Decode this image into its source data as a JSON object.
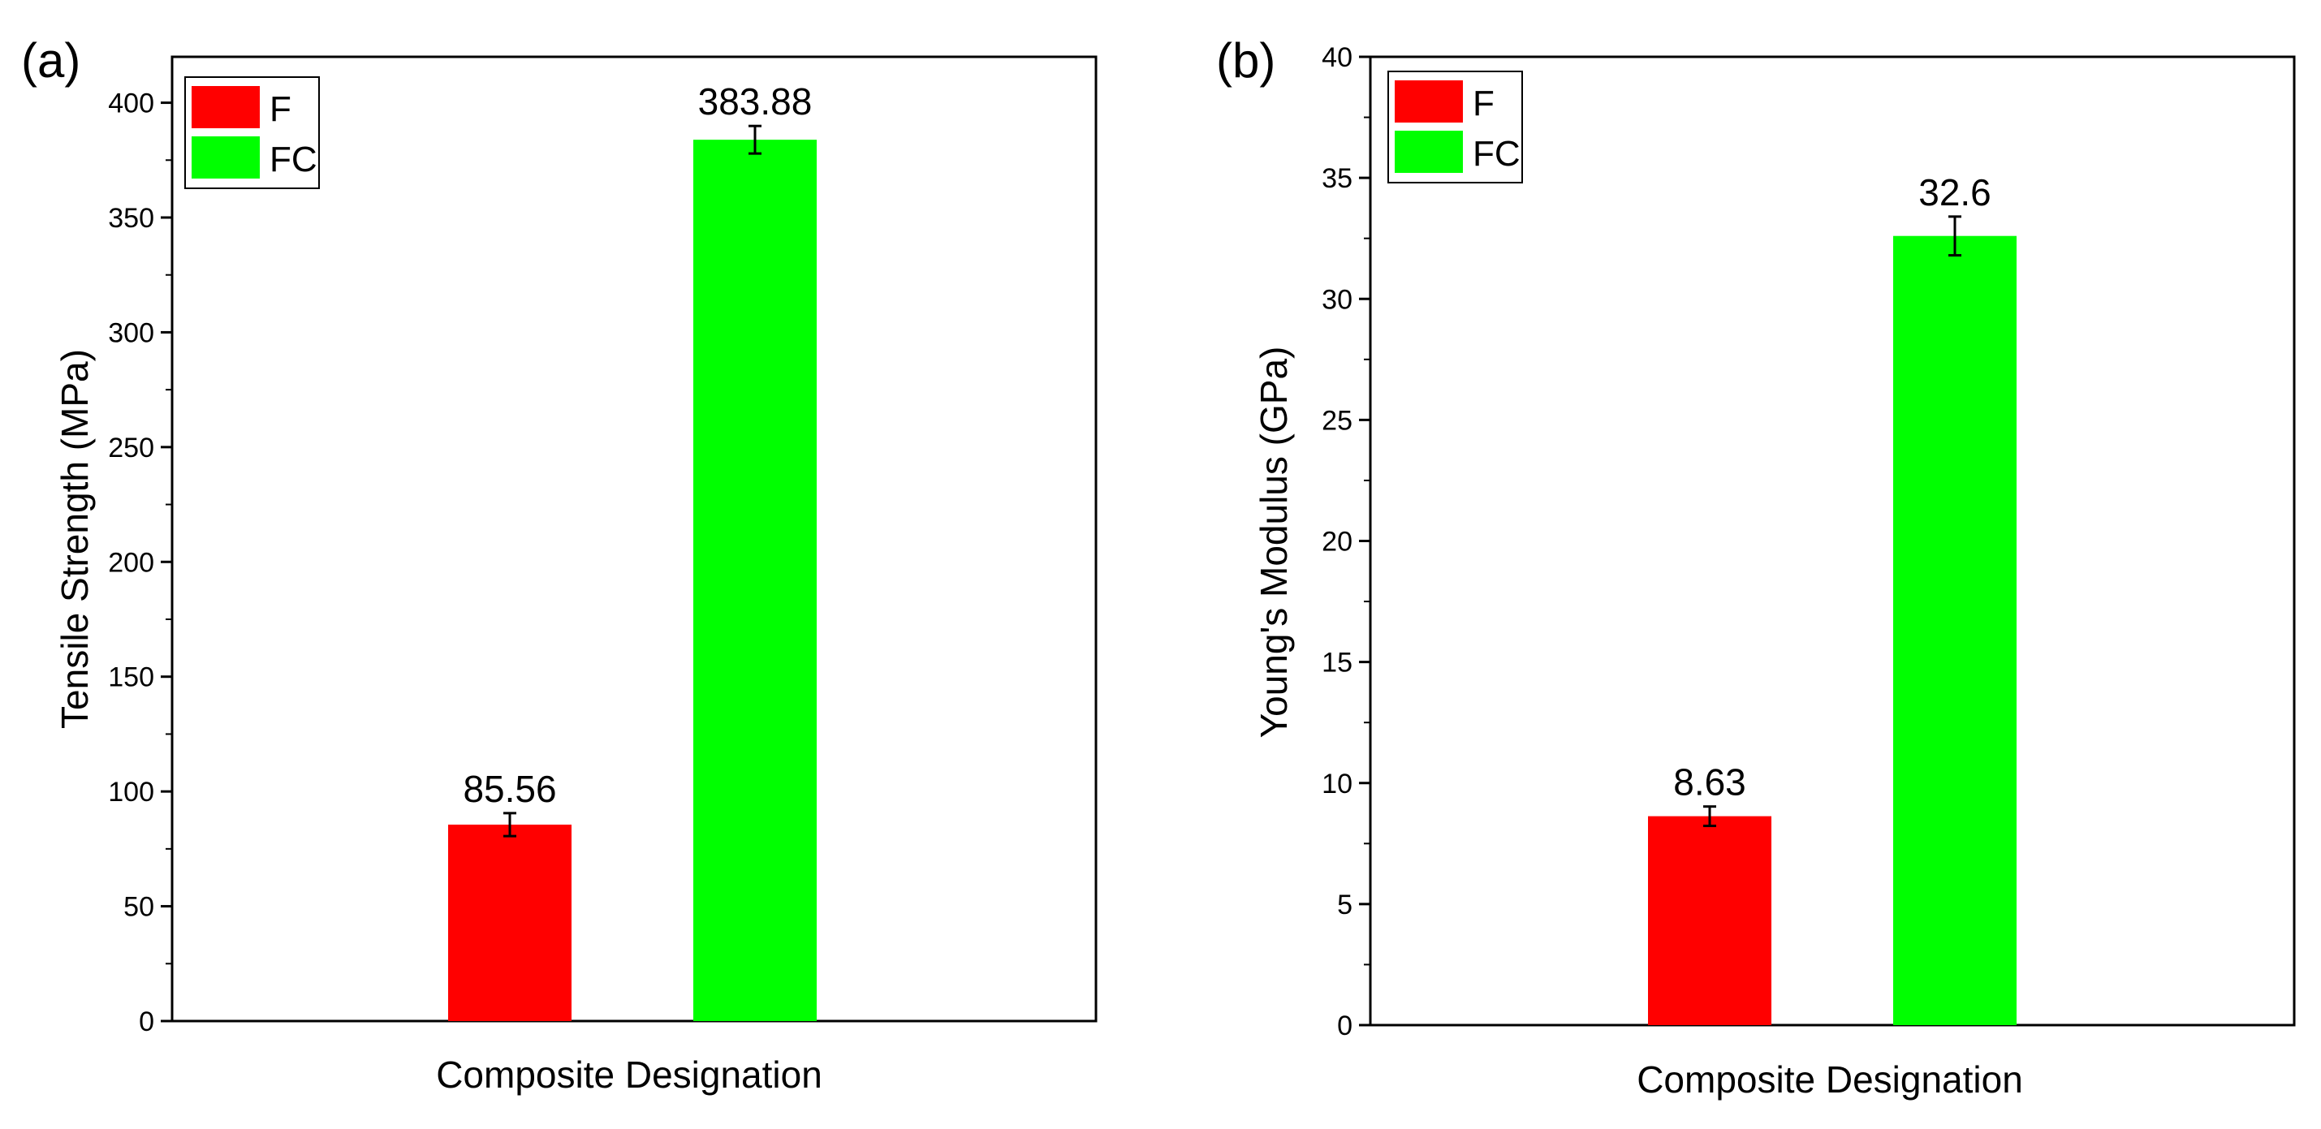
{
  "chart_data": [
    {
      "panel_label": "(a)",
      "type": "bar",
      "categories": [
        "F",
        "FC"
      ],
      "values": [
        85.56,
        383.88
      ],
      "errors": [
        5,
        6
      ],
      "data_labels": [
        "85.56",
        "383.88"
      ],
      "colors": [
        "#ff0000",
        "#00ff00"
      ],
      "xlabel": "Composite Designation",
      "ylabel": "Tensile Strength (MPa)",
      "ylim": [
        0,
        420
      ],
      "yticks": [
        0,
        50,
        100,
        150,
        200,
        250,
        300,
        350,
        400
      ],
      "ytick_labels": [
        "0",
        "50",
        "100",
        "150",
        "200",
        "250",
        "300",
        "350",
        "400"
      ],
      "legend": [
        "F",
        "FC"
      ],
      "legend_position": "top-left",
      "grid": false
    },
    {
      "panel_label": "(b)",
      "type": "bar",
      "categories": [
        "F",
        "FC"
      ],
      "values": [
        8.63,
        32.6
      ],
      "errors": [
        0.4,
        0.8
      ],
      "data_labels": [
        "8.63",
        "32.6"
      ],
      "colors": [
        "#ff0000",
        "#00ff00"
      ],
      "xlabel": "Composite Designation",
      "ylabel": "Young's Modulus (GPa)",
      "ylim": [
        0,
        40
      ],
      "yticks": [
        0,
        5,
        10,
        15,
        20,
        25,
        30,
        35,
        40
      ],
      "ytick_labels": [
        "0",
        "5",
        "10",
        "15",
        "20",
        "25",
        "30",
        "35",
        "40"
      ],
      "legend": [
        "F",
        "FC"
      ],
      "legend_position": "top-left",
      "grid": false
    }
  ]
}
